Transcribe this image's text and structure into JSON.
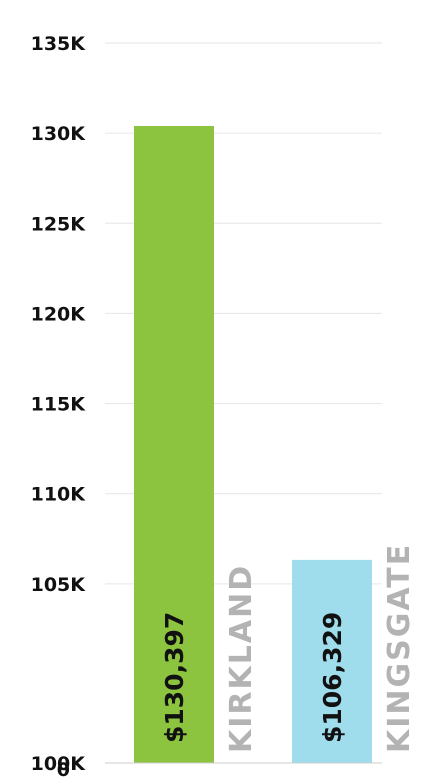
{
  "chart_data": {
    "type": "bar",
    "orientation": "vertical",
    "categories": [
      "KIRKLAND",
      "KINGSGATE"
    ],
    "values": [
      130397,
      106329
    ],
    "value_labels": [
      "$130,397",
      "$106,329"
    ],
    "colors": [
      "#8cc43f",
      "#9fdcec"
    ],
    "ytick_values": [
      0,
      100000,
      105000,
      110000,
      115000,
      120000,
      125000,
      130000,
      135000
    ],
    "yticks": [
      "0",
      "100K",
      "105K",
      "110K",
      "115K",
      "120K",
      "125K",
      "130K",
      "135K"
    ],
    "axis_break": [
      0,
      100000
    ],
    "ylim": [
      100000,
      135000
    ],
    "grid": true
  }
}
